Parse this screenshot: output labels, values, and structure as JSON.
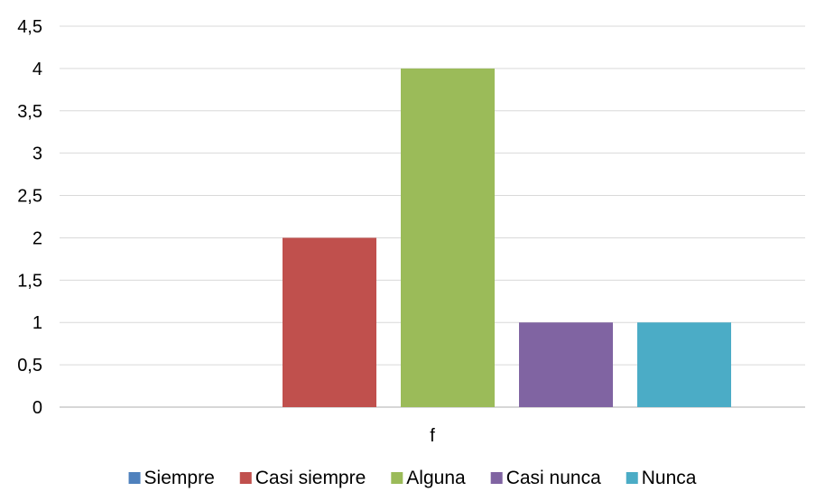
{
  "chart_data": {
    "type": "bar",
    "categories": [
      "f"
    ],
    "series": [
      {
        "name": "Siempre",
        "values": [
          0
        ],
        "color": "#4F81BD"
      },
      {
        "name": "Casi siempre",
        "values": [
          2
        ],
        "color": "#C0504D"
      },
      {
        "name": "Alguna",
        "values": [
          4
        ],
        "color": "#9BBB59"
      },
      {
        "name": "Casi nunca",
        "values": [
          1
        ],
        "color": "#8064A2"
      },
      {
        "name": "Nunca",
        "values": [
          1
        ],
        "color": "#4BACC6"
      }
    ],
    "y_ticks": [
      "0",
      "0,5",
      "1",
      "1,5",
      "2",
      "2,5",
      "3",
      "3,5",
      "4",
      "4,5"
    ],
    "ylim": [
      0,
      4.5
    ],
    "grid": true,
    "legend_position": "bottom",
    "title": "",
    "xlabel": "",
    "ylabel": ""
  }
}
